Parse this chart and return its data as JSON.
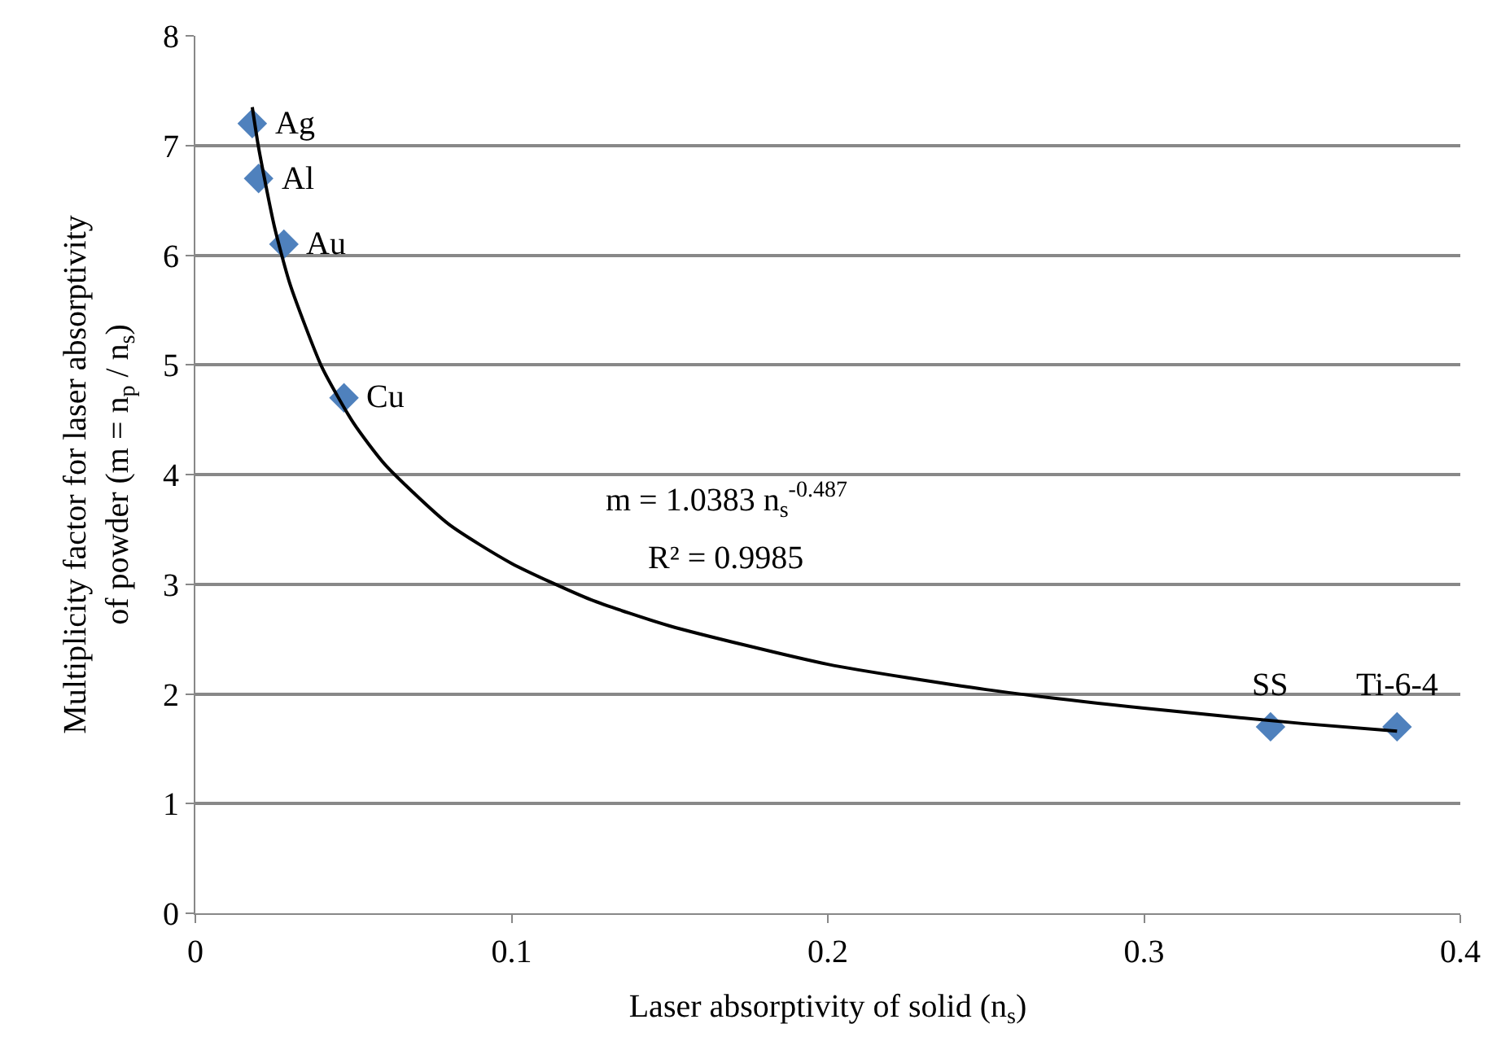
{
  "chart_data": {
    "type": "scatter",
    "xlabel": "Laser absorptivity of solid (n$_{s}$)",
    "ylabel": "Multiplicity factor for laser absorptivity of powder (m = n$_{p}$ / n$_{s}$)",
    "series": [
      {
        "color": "#4f81bd",
        "marker": "diamond",
        "x": [
          0.018,
          0.02,
          0.028,
          0.047,
          0.34,
          0.38
        ],
        "values": [
          7.2,
          6.7,
          6.1,
          4.7,
          1.7,
          1.7
        ]
      },
      {
        "type": "line",
        "color": "#000000",
        "marker": "none",
        "line_style": "solid",
        "x": [
          0.018,
          0.02,
          0.025,
          0.03,
          0.04,
          0.05,
          0.06,
          0.08,
          0.1,
          0.125,
          0.15,
          0.2,
          0.25,
          0.3,
          0.35,
          0.38
        ],
        "values": [
          7.35,
          6.98,
          6.26,
          5.73,
          4.98,
          4.47,
          4.09,
          3.55,
          3.19,
          2.86,
          2.62,
          2.27,
          2.04,
          1.87,
          1.73,
          1.66
        ]
      }
    ],
    "annotations": [
      {
        "text": "Ag",
        "x": 0.018,
        "y": 7.2
      },
      {
        "text": "Al",
        "x": 0.02,
        "y": 6.7
      },
      {
        "text": "Au",
        "x": 0.028,
        "y": 6.1
      },
      {
        "text": "Cu",
        "x": 0.047,
        "y": 4.7
      },
      {
        "text": "SS",
        "x": 0.34,
        "y": 1.7
      },
      {
        "text": "Ti-6-4",
        "x": 0.38,
        "y": 1.7
      },
      "m = 1.0383 n$_{s}$$^{-0.487}$",
      "R² = 0.9985"
    ],
    "xlim": [
      0,
      0.4
    ],
    "xticks": [
      0,
      0.1,
      0.2,
      0.3,
      0.4
    ],
    "ylim": [
      0,
      8
    ],
    "yticks": [
      0,
      1,
      2,
      3,
      4,
      5,
      6,
      7,
      8
    ],
    "grid": "y"
  }
}
